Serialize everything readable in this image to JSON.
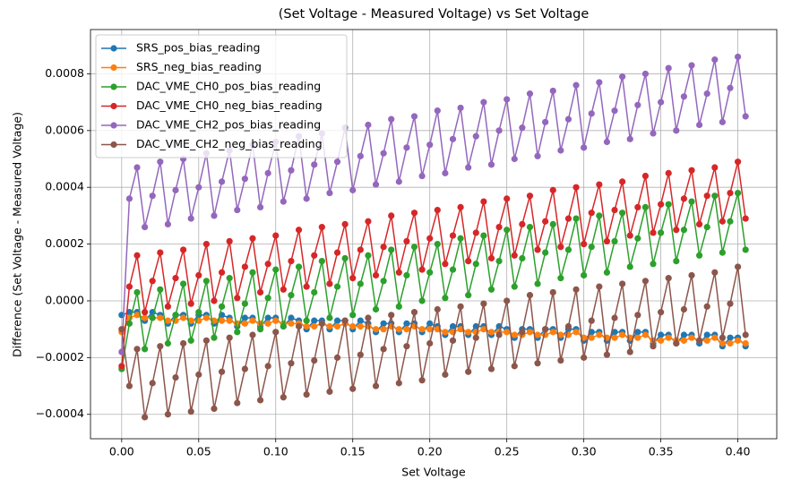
{
  "chart_data": {
    "type": "line",
    "title": "(Set Voltage - Measured Voltage) vs Set Voltage",
    "x_label": "Set Voltage",
    "y_label": "Difference (Set Voltage - Measured Voltage)",
    "xlim": [
      -0.02025,
      0.42525
    ],
    "ylim": [
      -0.000486,
      0.000956
    ],
    "xticks": [
      {
        "value": 0,
        "label": "0.00"
      },
      {
        "value": 0.05,
        "label": "0.05"
      },
      {
        "value": 0.1,
        "label": "0.10"
      },
      {
        "value": 0.15,
        "label": "0.15"
      },
      {
        "value": 0.2,
        "label": "0.20"
      },
      {
        "value": 0.25,
        "label": "0.25"
      },
      {
        "value": 0.3,
        "label": "0.30"
      },
      {
        "value": 0.35,
        "label": "0.35"
      },
      {
        "value": 0.4,
        "label": "0.40"
      }
    ],
    "yticks": [
      {
        "value": -0.0004,
        "label": "−0.0004"
      },
      {
        "value": -0.0002,
        "label": "−0.0002"
      },
      {
        "value": 0,
        "label": "0.0000"
      },
      {
        "value": 0.0002,
        "label": "0.0002"
      },
      {
        "value": 0.0004,
        "label": "0.0004"
      },
      {
        "value": 0.0006,
        "label": "0.0006"
      },
      {
        "value": 0.0008,
        "label": "0.0008"
      }
    ],
    "grid": true,
    "legend": "upper left",
    "x": [
      0,
      0.005,
      0.01,
      0.015,
      0.02,
      0.025,
      0.03,
      0.035,
      0.04,
      0.045,
      0.05,
      0.055,
      0.06,
      0.065,
      0.07,
      0.075,
      0.08,
      0.085,
      0.09,
      0.095,
      0.1,
      0.105,
      0.11,
      0.115,
      0.12,
      0.125,
      0.13,
      0.135,
      0.14,
      0.145,
      0.15,
      0.155,
      0.16,
      0.165,
      0.17,
      0.175,
      0.18,
      0.185,
      0.19,
      0.195,
      0.2,
      0.205,
      0.21,
      0.215,
      0.22,
      0.225,
      0.23,
      0.235,
      0.24,
      0.245,
      0.25,
      0.255,
      0.26,
      0.265,
      0.27,
      0.275,
      0.28,
      0.285,
      0.29,
      0.295,
      0.3,
      0.305,
      0.31,
      0.315,
      0.32,
      0.325,
      0.33,
      0.335,
      0.34,
      0.345,
      0.35,
      0.355,
      0.36,
      0.365,
      0.37,
      0.375,
      0.38,
      0.385,
      0.39,
      0.395,
      0.4,
      0.405
    ],
    "series": [
      {
        "name": "SRS_pos_bias_reading",
        "color": "#1f77b4",
        "values": [
          -5e-05,
          -4e-05,
          -4e-05,
          -7e-05,
          -4e-05,
          -5e-05,
          -8e-05,
          -5e-05,
          -5e-05,
          -8e-05,
          -5e-05,
          -5e-05,
          -8e-05,
          -5e-05,
          -6e-05,
          -9e-05,
          -6e-05,
          -6e-05,
          -9e-05,
          -6e-05,
          -6e-05,
          -9e-05,
          -6e-05,
          -7e-05,
          -0.0001,
          -7e-05,
          -7e-05,
          -0.0001,
          -7e-05,
          -7e-05,
          -0.0001,
          -7e-05,
          -8e-05,
          -0.00011,
          -8e-05,
          -8e-05,
          -0.00011,
          -8e-05,
          -8e-05,
          -0.00011,
          -8e-05,
          -9e-05,
          -0.00012,
          -9e-05,
          -9e-05,
          -0.00012,
          -9e-05,
          -9e-05,
          -0.00012,
          -9e-05,
          -0.0001,
          -0.00013,
          -0.0001,
          -0.0001,
          -0.00013,
          -0.0001,
          -0.0001,
          -0.00013,
          -0.0001,
          -0.0001,
          -0.00014,
          -0.00011,
          -0.00011,
          -0.00014,
          -0.00011,
          -0.00011,
          -0.00014,
          -0.00011,
          -0.00011,
          -0.00015,
          -0.00012,
          -0.00012,
          -0.00015,
          -0.00012,
          -0.00012,
          -0.00015,
          -0.00012,
          -0.00012,
          -0.00016,
          -0.00013,
          -0.00013,
          -0.00016
        ]
      },
      {
        "name": "SRS_neg_bias_reading",
        "color": "#ff7f0e",
        "values": [
          -0.00011,
          -6e-05,
          -5e-05,
          -6e-05,
          -6e-05,
          -6e-05,
          -7e-05,
          -7e-05,
          -6e-05,
          -7e-05,
          -7e-05,
          -6e-05,
          -7e-05,
          -7e-05,
          -7e-05,
          -8e-05,
          -8e-05,
          -7e-05,
          -8e-05,
          -8e-05,
          -7e-05,
          -8e-05,
          -8e-05,
          -8e-05,
          -9e-05,
          -9e-05,
          -8e-05,
          -9e-05,
          -9e-05,
          -8e-05,
          -9e-05,
          -9e-05,
          -9e-05,
          -0.0001,
          -0.0001,
          -9e-05,
          -0.0001,
          -0.0001,
          -9e-05,
          -0.0001,
          -0.0001,
          -0.0001,
          -0.00011,
          -0.00011,
          -0.0001,
          -0.00011,
          -0.00011,
          -0.0001,
          -0.00011,
          -0.00011,
          -0.00011,
          -0.00012,
          -0.00012,
          -0.00011,
          -0.00012,
          -0.00012,
          -0.00011,
          -0.00012,
          -0.00012,
          -0.00011,
          -0.00013,
          -0.00013,
          -0.00012,
          -0.00013,
          -0.00013,
          -0.00012,
          -0.00013,
          -0.00013,
          -0.00012,
          -0.00014,
          -0.00014,
          -0.00013,
          -0.00014,
          -0.00014,
          -0.00013,
          -0.00014,
          -0.00014,
          -0.00013,
          -0.00015,
          -0.00015,
          -0.00014,
          -0.00015
        ]
      },
      {
        "name": "DAC_VME_CH0_pos_bias_reading",
        "color": "#2ca02c",
        "values": [
          -0.00024,
          -8e-05,
          3e-05,
          -0.00017,
          -6e-05,
          4e-05,
          -0.00015,
          -5e-05,
          6e-05,
          -0.00014,
          -4e-05,
          7e-05,
          -0.00013,
          -2e-05,
          8e-05,
          -0.00011,
          -1e-05,
          0.0001,
          -0.0001,
          1e-05,
          0.00011,
          -9e-05,
          2e-05,
          0.00012,
          -7e-05,
          3e-05,
          0.00014,
          -6e-05,
          5e-05,
          0.00015,
          -5e-05,
          6e-05,
          0.00016,
          -3e-05,
          7e-05,
          0.00018,
          -2e-05,
          9e-05,
          0.00019,
          0,
          0.0001,
          0.0002,
          1e-05,
          0.00011,
          0.00022,
          2e-05,
          0.00013,
          0.00023,
          4e-05,
          0.00014,
          0.00025,
          5e-05,
          0.00015,
          0.00026,
          6e-05,
          0.00017,
          0.00027,
          8e-05,
          0.00018,
          0.00029,
          9e-05,
          0.00019,
          0.0003,
          0.0001,
          0.00021,
          0.00031,
          0.00012,
          0.00022,
          0.00033,
          0.00013,
          0.00024,
          0.00034,
          0.00014,
          0.00025,
          0.00035,
          0.00016,
          0.00026,
          0.00037,
          0.00017,
          0.00028,
          0.00038,
          0.00018
        ]
      },
      {
        "name": "DAC_VME_CH0_neg_bias_reading",
        "color": "#d62728",
        "values": [
          -0.00023,
          5e-05,
          0.00016,
          -4e-05,
          7e-05,
          0.00017,
          -2e-05,
          8e-05,
          0.00018,
          -1e-05,
          9e-05,
          0.0002,
          0,
          0.0001,
          0.00021,
          1e-05,
          0.00012,
          0.00022,
          3e-05,
          0.00013,
          0.00023,
          4e-05,
          0.00014,
          0.00025,
          5e-05,
          0.00016,
          0.00026,
          6e-05,
          0.00017,
          0.00027,
          8e-05,
          0.00018,
          0.00028,
          9e-05,
          0.00019,
          0.0003,
          0.0001,
          0.00021,
          0.00031,
          0.00011,
          0.00022,
          0.00032,
          0.00013,
          0.00023,
          0.00033,
          0.00014,
          0.00024,
          0.00035,
          0.00015,
          0.00026,
          0.00036,
          0.00016,
          0.00027,
          0.00037,
          0.00018,
          0.00028,
          0.00039,
          0.00019,
          0.00029,
          0.0004,
          0.0002,
          0.00031,
          0.00041,
          0.00021,
          0.00032,
          0.00042,
          0.00023,
          0.00033,
          0.00044,
          0.00024,
          0.00034,
          0.00045,
          0.00025,
          0.00036,
          0.00046,
          0.00027,
          0.00037,
          0.00047,
          0.00028,
          0.00038,
          0.00049,
          0.00029
        ]
      },
      {
        "name": "DAC_VME_CH2_pos_bias_reading",
        "color": "#9467bd",
        "values": [
          -0.00018,
          0.00036,
          0.00047,
          0.00026,
          0.00037,
          0.00049,
          0.00027,
          0.00039,
          0.0005,
          0.00029,
          0.0004,
          0.00052,
          0.0003,
          0.00042,
          0.00053,
          0.00032,
          0.00043,
          0.00055,
          0.00033,
          0.00045,
          0.00056,
          0.00035,
          0.00046,
          0.00058,
          0.00036,
          0.00048,
          0.00059,
          0.00038,
          0.00049,
          0.00061,
          0.00039,
          0.00051,
          0.00062,
          0.00041,
          0.00052,
          0.00064,
          0.00042,
          0.00054,
          0.00065,
          0.00044,
          0.00055,
          0.00067,
          0.00045,
          0.00057,
          0.00068,
          0.00047,
          0.00058,
          0.0007,
          0.00048,
          0.0006,
          0.00071,
          0.0005,
          0.00061,
          0.00073,
          0.00051,
          0.00063,
          0.00074,
          0.00053,
          0.00064,
          0.00076,
          0.00054,
          0.00066,
          0.00077,
          0.00056,
          0.00067,
          0.00079,
          0.00057,
          0.00069,
          0.0008,
          0.00059,
          0.0007,
          0.00082,
          0.0006,
          0.00072,
          0.00083,
          0.00062,
          0.00073,
          0.00085,
          0.00063,
          0.00075,
          0.00086,
          0.00065
        ]
      },
      {
        "name": "DAC_VME_CH2_neg_bias_reading",
        "color": "#8c564b",
        "values": [
          -0.0001,
          -0.0003,
          -0.00017,
          -0.00041,
          -0.00029,
          -0.00016,
          -0.0004,
          -0.00027,
          -0.00015,
          -0.00039,
          -0.00026,
          -0.00014,
          -0.00038,
          -0.00025,
          -0.00013,
          -0.00036,
          -0.00024,
          -0.00012,
          -0.00035,
          -0.00023,
          -0.00011,
          -0.00034,
          -0.00022,
          -9e-05,
          -0.00033,
          -0.00021,
          -8e-05,
          -0.00032,
          -0.0002,
          -7e-05,
          -0.00031,
          -0.00019,
          -6e-05,
          -0.0003,
          -0.00017,
          -5e-05,
          -0.00029,
          -0.00016,
          -4e-05,
          -0.00028,
          -0.00015,
          -3e-05,
          -0.00026,
          -0.00014,
          -2e-05,
          -0.00025,
          -0.00013,
          -1e-05,
          -0.00024,
          -0.00012,
          0,
          -0.00023,
          -0.00011,
          2e-05,
          -0.00022,
          -0.0001,
          3e-05,
          -0.00021,
          -9e-05,
          4e-05,
          -0.0002,
          -7e-05,
          5e-05,
          -0.00019,
          -6e-05,
          6e-05,
          -0.00018,
          -5e-05,
          7e-05,
          -0.00016,
          -4e-05,
          8e-05,
          -0.00015,
          -3e-05,
          9e-05,
          -0.00014,
          -2e-05,
          0.0001,
          -0.00013,
          -1e-05,
          0.00012,
          -0.00012
        ]
      }
    ]
  }
}
